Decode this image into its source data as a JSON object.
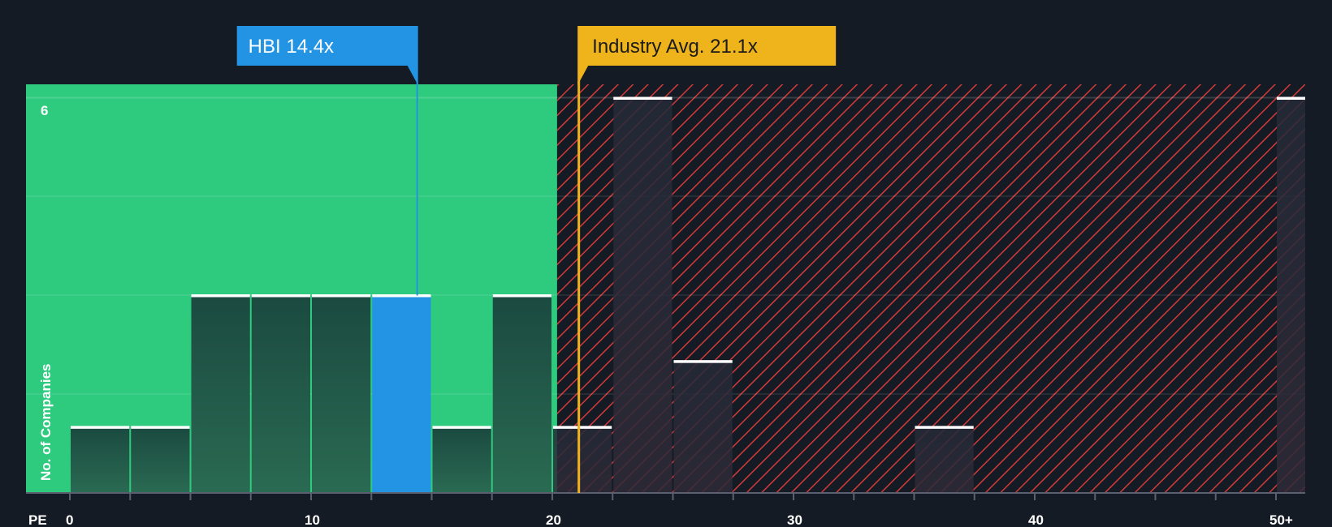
{
  "colors": {
    "background": "#151b24",
    "undervalued_zone": "#2ecb7f",
    "overvalued_hatch": "#d23a3a",
    "bar_dark": "#1f4a40",
    "bar_dark_over": "#2a2f3f",
    "bar_highlight": "#2393e3",
    "avg_line": "#f0b31d",
    "company_label_bg": "#2393e3",
    "avg_label_bg": "#efb31c"
  },
  "chart_data": {
    "type": "bar",
    "title": "",
    "xlabel": "PE",
    "ylabel": "No. of Companies",
    "bin_width": 2.5,
    "bins": [
      {
        "start": 0,
        "count": 1
      },
      {
        "start": 2.5,
        "count": 1
      },
      {
        "start": 5,
        "count": 3
      },
      {
        "start": 7.5,
        "count": 3
      },
      {
        "start": 10,
        "count": 3
      },
      {
        "start": 12.5,
        "count": 3,
        "highlight": true
      },
      {
        "start": 15,
        "count": 1
      },
      {
        "start": 17.5,
        "count": 3
      },
      {
        "start": 20,
        "count": 1
      },
      {
        "start": 22.5,
        "count": 6
      },
      {
        "start": 25,
        "count": 2
      },
      {
        "start": 35,
        "count": 1
      },
      {
        "start": 50,
        "count": 6,
        "label": "50+"
      }
    ],
    "x_ticks": [
      {
        "value": 0,
        "label": "0"
      },
      {
        "value": 10,
        "label": "10"
      },
      {
        "value": 20,
        "label": "20"
      },
      {
        "value": 30,
        "label": "30"
      },
      {
        "value": 40,
        "label": "40"
      },
      {
        "value": 50,
        "label": "50+"
      }
    ],
    "y_ticks": [
      {
        "value": 6,
        "label": "6"
      }
    ],
    "ylim": [
      0,
      6.2
    ],
    "company": {
      "ticker": "HBI",
      "value": 14.4,
      "label": "HBI 14.4x"
    },
    "industry_avg": {
      "value": 21.1,
      "label": "Industry Avg. 21.1x"
    },
    "zones": {
      "fair_threshold": 20.2
    }
  }
}
